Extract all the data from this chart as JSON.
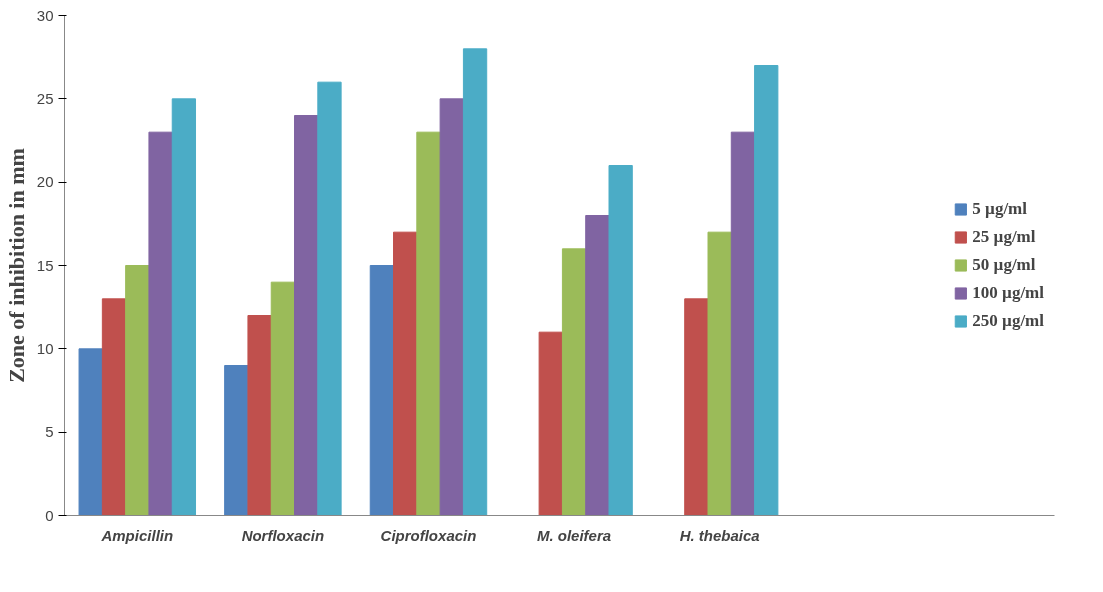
{
  "chart_data": {
    "type": "bar",
    "ylabel": "Zone of inhibition in mm",
    "categories": [
      "Ampicillin",
      "Norfloxacin",
      "Ciprofloxacin",
      "M. oleifera",
      "H. thebaica"
    ],
    "series": [
      {
        "name": "5 µg/ml",
        "color": "#4f81bd",
        "values": [
          10,
          9,
          15,
          null,
          null
        ]
      },
      {
        "name": "25 µg/ml",
        "color": "#c0504d",
        "values": [
          13,
          12,
          17,
          11,
          13
        ]
      },
      {
        "name": "50 µg/ml",
        "color": "#9bbb59",
        "values": [
          15,
          14,
          23,
          16,
          17
        ]
      },
      {
        "name": "100 µg/ml",
        "color": "#8064a2",
        "values": [
          23,
          24,
          25,
          18,
          23
        ]
      },
      {
        "name": "250 µg/ml",
        "color": "#4bacc6",
        "values": [
          25,
          26,
          28,
          21,
          27
        ]
      }
    ],
    "ylim": [
      0,
      30
    ],
    "yticks": [
      0,
      5,
      10,
      15,
      20,
      25,
      30
    ],
    "grid": false,
    "legend": "right"
  }
}
